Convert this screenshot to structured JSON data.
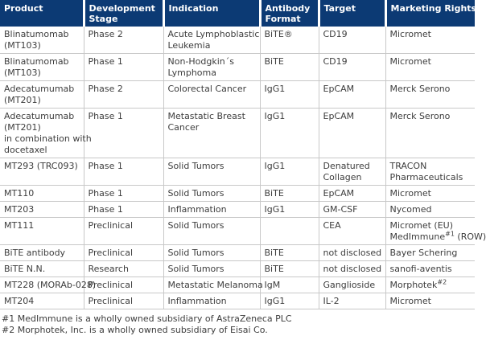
{
  "colors": {
    "header_bg": "#0c3a74",
    "header_text": "#ffffff",
    "body_text": "#3d3d3d",
    "grid": "#c8c8c8",
    "page_bg": "#ffffff"
  },
  "table": {
    "columns": [
      {
        "id": "product",
        "label": "Product",
        "width": 104
      },
      {
        "id": "development-stage",
        "label": "Development\nStage",
        "width": 99
      },
      {
        "id": "indication",
        "label": "Indication",
        "width": 120
      },
      {
        "id": "antibody-format",
        "label": "Antibody\nFormat",
        "width": 73
      },
      {
        "id": "target",
        "label": "Target",
        "width": 83
      },
      {
        "id": "marketing-rights",
        "label": "Marketing Rights",
        "width": 111
      }
    ],
    "rows": [
      [
        "Blinatumomab\n(MT103)",
        "Phase 2",
        "Acute Lymphoblastic\nLeukemia",
        "BiTE®",
        "CD19",
        "Micromet"
      ],
      [
        "Blinatumomab\n(MT103)",
        "Phase 1",
        "Non-Hodgkin´s\nLymphoma",
        "BiTE",
        "CD19",
        "Micromet"
      ],
      [
        "Adecatumumab\n(MT201)",
        "Phase 2",
        "Colorectal Cancer",
        "IgG1",
        "EpCAM",
        "Merck Serono"
      ],
      [
        "Adecatumumab\n(MT201)\nin combination with\ndocetaxel",
        "Phase 1",
        "Metastatic Breast\nCancer",
        "IgG1",
        "EpCAM",
        "Merck Serono"
      ],
      [
        "MT293 (TRC093)",
        "Phase 1",
        "Solid Tumors",
        "IgG1",
        "Denatured\nCollagen",
        "TRACON\nPharmaceuticals"
      ],
      [
        "MT110",
        "Phase 1",
        "Solid Tumors",
        "BiTE",
        "EpCAM",
        "Micromet"
      ],
      [
        "MT203",
        "Phase 1",
        "Inflammation",
        "IgG1",
        "GM-CSF",
        "Nycomed"
      ],
      [
        "MT111",
        "Preclinical",
        "Solid Tumors",
        "",
        "CEA",
        "Micromet (EU)\nMedImmune^{#1} (ROW)"
      ],
      [
        "BiTE antibody",
        "Preclinical",
        "Solid Tumors",
        "BiTE",
        "not disclosed",
        "Bayer Schering"
      ],
      [
        "BiTE N.N.",
        "Research",
        "Solid Tumors",
        "BiTE",
        "not disclosed",
        "sanofi-aventis"
      ],
      [
        "MT228 (MORAb-028)",
        "Preclinical",
        "Metastatic Melanoma",
        "IgM",
        "Ganglioside",
        "Morphotek^{#2}"
      ],
      [
        "MT204",
        "Preclinical",
        "Inflammation",
        "IgG1",
        "IL-2",
        "Micromet"
      ]
    ]
  },
  "footnotes": [
    "#1 MedImmune is a wholly owned subsidiary of AstraZeneca PLC",
    "#2 Morphotek, Inc. is a wholly owned subsidiary of Eisai Co."
  ]
}
